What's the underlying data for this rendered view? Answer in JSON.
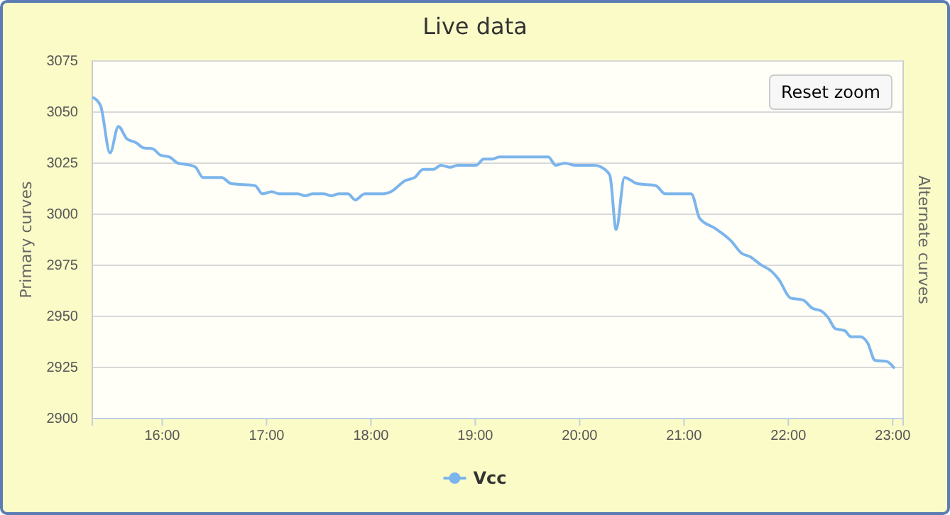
{
  "chart_data": {
    "type": "line",
    "title": "Live data",
    "ylabel": "Primary curves",
    "y2label": "Alternate curves",
    "annotations": [
      "Reset zoom"
    ],
    "x": [
      15.34,
      15.41,
      15.5,
      15.58,
      15.66,
      15.75,
      15.82,
      15.91,
      15.98,
      16.07,
      16.15,
      16.27,
      16.32,
      16.39,
      16.57,
      16.66,
      16.89,
      16.96,
      17.05,
      17.12,
      17.3,
      17.37,
      17.44,
      17.55,
      17.62,
      17.69,
      17.78,
      17.85,
      17.94,
      18.12,
      18.19,
      18.33,
      18.42,
      18.5,
      18.6,
      18.67,
      18.76,
      18.83,
      19.01,
      19.08,
      19.16,
      19.23,
      19.7,
      19.77,
      19.86,
      19.95,
      20.14,
      20.24,
      20.29,
      20.35,
      20.43,
      20.55,
      20.73,
      20.82,
      21.07,
      21.15,
      21.3,
      21.45,
      21.55,
      21.64,
      21.73,
      21.84,
      21.91,
      22.02,
      22.14,
      22.23,
      22.32,
      22.38,
      22.45,
      22.54,
      22.6,
      22.69,
      22.76,
      22.83,
      22.94,
      23.01
    ],
    "series": [
      {
        "name": "Vcc",
        "color": "#7cb5ec",
        "values": [
          3057,
          3053,
          3030,
          3043,
          3037,
          3035,
          3032.5,
          3032,
          3029,
          3028,
          3025,
          3024,
          3023,
          3018,
          3018,
          3015,
          3014,
          3010,
          3011,
          3010,
          3010,
          3009,
          3010,
          3010,
          3009,
          3010,
          3010,
          3007,
          3010,
          3010,
          3011,
          3016.5,
          3018,
          3022,
          3022,
          3024,
          3023,
          3024,
          3024,
          3027,
          3027,
          3028,
          3028,
          3024,
          3025,
          3024,
          3024,
          3022,
          3019,
          2992.5,
          3018,
          3015,
          3014,
          3010,
          3010,
          2998,
          2993,
          2987,
          2981,
          2979,
          2975.5,
          2972,
          2968,
          2959,
          2958,
          2954,
          2952.5,
          2949.5,
          2944,
          2943,
          2940,
          2940,
          2937,
          2928.5,
          2928,
          2925
        ]
      }
    ],
    "xlim": [
      15.33,
      23.1
    ],
    "xticks": [
      {
        "value": 16,
        "label": "16:00"
      },
      {
        "value": 17,
        "label": "17:00"
      },
      {
        "value": 18,
        "label": "18:00"
      },
      {
        "value": 19,
        "label": "19:00"
      },
      {
        "value": 20,
        "label": "20:00"
      },
      {
        "value": 21,
        "label": "21:00"
      },
      {
        "value": 22,
        "label": "22:00"
      },
      {
        "value": 23,
        "label": "23:00"
      }
    ],
    "ylim": [
      2900,
      3075
    ],
    "yticks": [
      2900,
      2925,
      2950,
      2975,
      3000,
      3025,
      3050,
      3075
    ],
    "grid": "y",
    "legend": "bottom",
    "marker": "none",
    "line_style": "solid"
  }
}
